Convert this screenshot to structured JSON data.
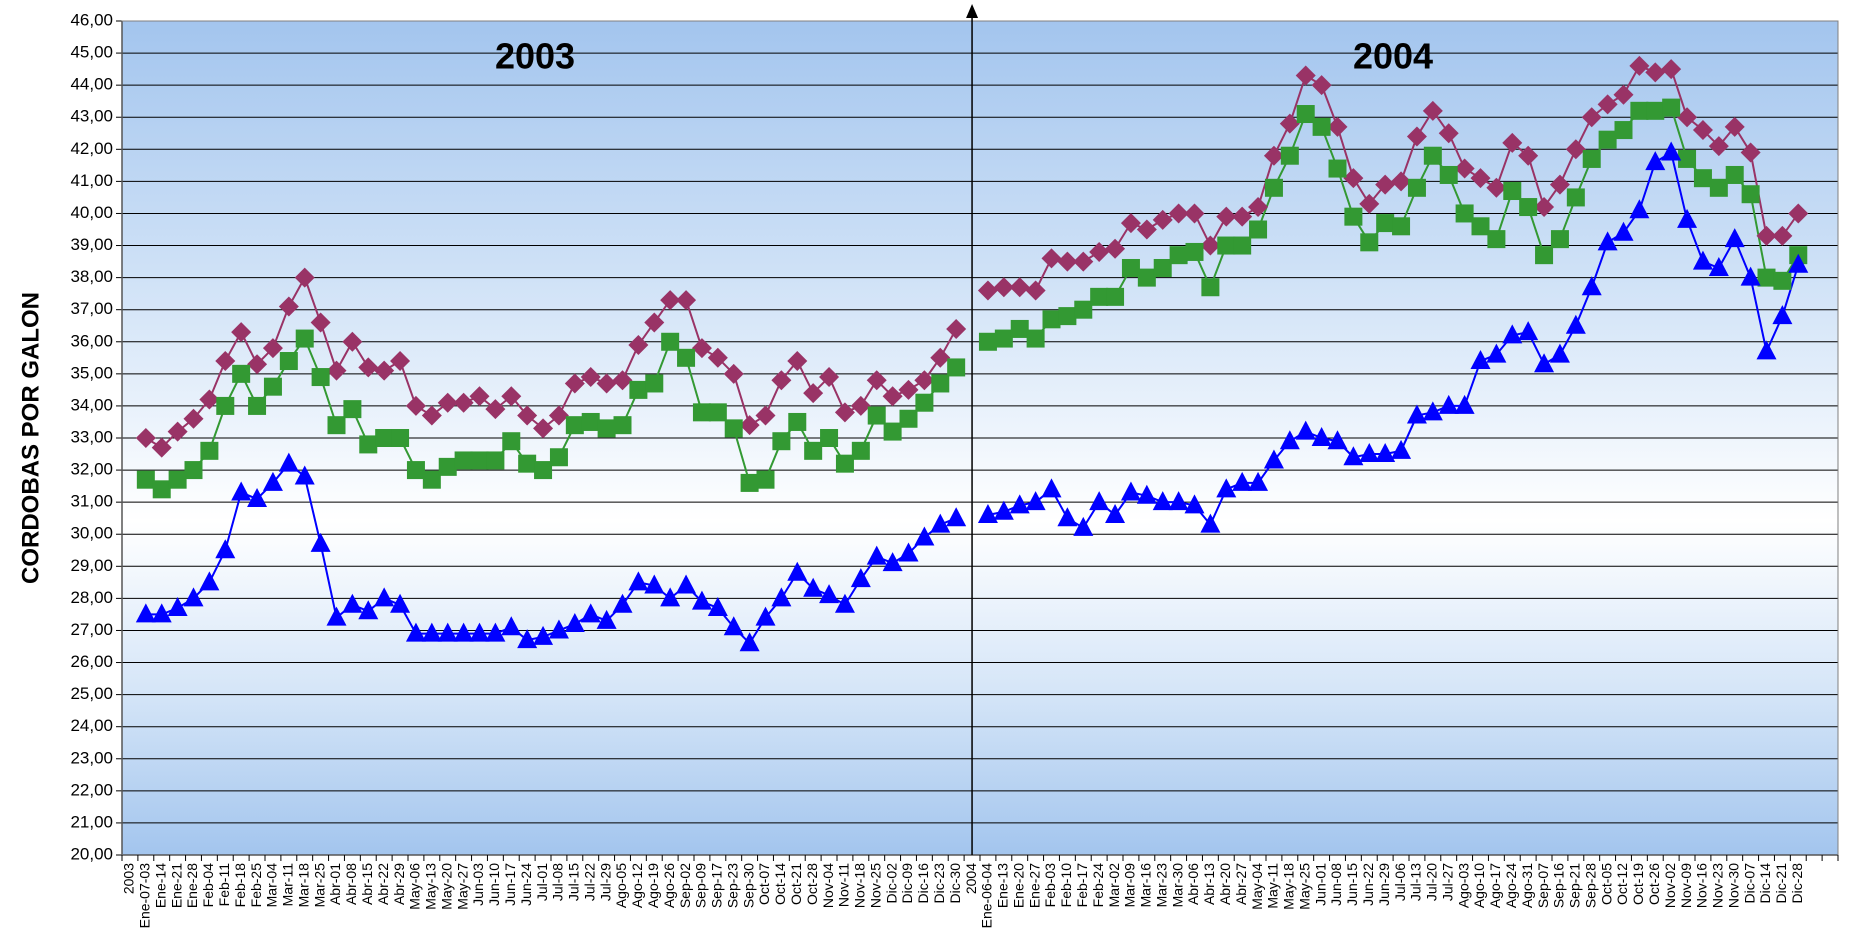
{
  "chart_data": {
    "type": "line",
    "y_label": "CORDOBAS POR GALON",
    "annotations": [
      "2003",
      "2004"
    ],
    "categories": [
      "2003",
      "Ene-07-03",
      "Ene-14",
      "Ene-21",
      "Ene-28",
      "Feb-04",
      "Feb-11",
      "Feb-18",
      "Feb-25",
      "Mar-04",
      "Mar-11",
      "Mar-18",
      "Mar-25",
      "Abr-01",
      "Abr-08",
      "Abr-15",
      "Abr-22",
      "Abr-29",
      "May-06",
      "May-13",
      "May-20",
      "May-27",
      "Jun-03",
      "Jun-10",
      "Jun-17",
      "Jun-24",
      "Jul-01",
      "Jul-08",
      "Jul-15",
      "Jul-22",
      "Jul-29",
      "Ago-05",
      "Ago-12",
      "Ago-19",
      "Ago-26",
      "Sep-02",
      "Sep-09",
      "Sep-17",
      "Sep-23",
      "Sep-30",
      "Oct-07",
      "Oct-14",
      "Oct-21",
      "Oct-28",
      "Nov-04",
      "Nov-11",
      "Nov-18",
      "Nov-25",
      "Dic-02",
      "Dic-09",
      "Dic-16",
      "Dic-23",
      "Dic-30",
      "2004",
      "Ene-06-04",
      "Ene-13",
      "Ene-20",
      "Ene-27",
      "Feb-03",
      "Feb-10",
      "Feb-17",
      "Feb-24",
      "Mar-02",
      "Mar-09",
      "Mar-16",
      "Mar-23",
      "Mar-30",
      "Abr-06",
      "Abr-13",
      "Abr-20",
      "Abr-27",
      "May-04",
      "May-11",
      "May-18",
      "May-25",
      "Jun-01",
      "Jun-08",
      "Jun-15",
      "Jun-22",
      "Jun-29",
      "Jul-06",
      "Jul-13",
      "Jul-20",
      "Jul-27",
      "Ago-03",
      "Ago-10",
      "Ago-17",
      "Ago-24",
      "Ago-31",
      "Sep-07",
      "Sep-16",
      "Sep-21",
      "Sep-28",
      "Oct-05",
      "Oct-12",
      "Oct-19",
      "Oct-26",
      "Nov-02",
      "Nov-09",
      "Nov-16",
      "Nov-23",
      "Nov-30",
      "Dic-07",
      "Dic-14",
      "Dic-21",
      "Dic-28",
      null,
      null
    ],
    "series": [
      {
        "color": "#993366",
        "marker": "diamond",
        "values": [
          null,
          33.0,
          32.7,
          33.2,
          33.6,
          34.2,
          35.4,
          36.3,
          35.3,
          35.8,
          37.1,
          38.0,
          36.6,
          35.1,
          36.0,
          35.2,
          35.1,
          35.4,
          34.0,
          33.7,
          34.1,
          34.1,
          34.3,
          33.9,
          34.3,
          33.7,
          33.3,
          33.7,
          34.7,
          34.9,
          34.7,
          34.8,
          35.9,
          36.6,
          37.3,
          37.3,
          35.8,
          35.5,
          35.0,
          33.4,
          33.7,
          34.8,
          35.4,
          34.4,
          34.9,
          33.8,
          34.0,
          34.8,
          34.3,
          34.5,
          34.8,
          35.5,
          36.4,
          null,
          37.6,
          37.7,
          37.7,
          37.6,
          38.6,
          38.5,
          38.5,
          38.8,
          38.9,
          39.7,
          39.5,
          39.8,
          40.0,
          40.0,
          39.0,
          39.9,
          39.9,
          40.2,
          41.8,
          42.8,
          44.3,
          44.0,
          42.7,
          41.1,
          40.3,
          40.9,
          41.0,
          42.4,
          43.2,
          42.5,
          41.4,
          41.1,
          40.8,
          42.2,
          41.8,
          40.2,
          40.9,
          42.0,
          43.0,
          43.4,
          43.7,
          44.6,
          44.4,
          44.5,
          43.0,
          42.6,
          42.1,
          42.7,
          41.9,
          39.3,
          39.3,
          40.0,
          null,
          null
        ]
      },
      {
        "color": "#339933",
        "marker": "square",
        "values": [
          null,
          31.7,
          31.4,
          31.7,
          32.0,
          32.6,
          34.0,
          35.0,
          34.0,
          34.6,
          35.4,
          36.1,
          34.9,
          33.4,
          33.9,
          32.8,
          33.0,
          33.0,
          32.0,
          31.7,
          32.1,
          32.3,
          32.3,
          32.3,
          32.9,
          32.2,
          32.0,
          32.4,
          33.4,
          33.5,
          33.3,
          33.4,
          34.5,
          34.7,
          36.0,
          35.5,
          33.8,
          33.8,
          33.3,
          31.6,
          31.7,
          32.9,
          33.5,
          32.6,
          33.0,
          32.2,
          32.6,
          33.7,
          33.2,
          33.6,
          34.1,
          34.7,
          35.2,
          null,
          36.0,
          36.1,
          36.4,
          36.1,
          36.7,
          36.8,
          37.0,
          37.4,
          37.4,
          38.3,
          38.0,
          38.3,
          38.7,
          38.8,
          37.7,
          39.0,
          39.0,
          39.5,
          40.8,
          41.8,
          43.1,
          42.7,
          41.4,
          39.9,
          39.1,
          39.7,
          39.6,
          40.8,
          41.8,
          41.2,
          40.0,
          39.6,
          39.2,
          40.7,
          40.2,
          38.7,
          39.2,
          40.5,
          41.7,
          42.3,
          42.6,
          43.2,
          43.2,
          43.3,
          41.7,
          41.1,
          40.8,
          41.2,
          40.6,
          38.0,
          37.9,
          38.7,
          null,
          null
        ]
      },
      {
        "color": "#0000ff",
        "marker": "triangle",
        "values": [
          null,
          27.5,
          27.5,
          27.7,
          28.0,
          28.5,
          29.5,
          31.3,
          31.1,
          31.6,
          32.2,
          31.8,
          29.7,
          27.4,
          27.8,
          27.6,
          28.0,
          27.8,
          26.9,
          26.9,
          26.9,
          26.9,
          26.9,
          26.9,
          27.1,
          26.7,
          26.8,
          27.0,
          27.2,
          27.5,
          27.3,
          27.8,
          28.5,
          28.4,
          28.0,
          28.4,
          27.9,
          27.7,
          27.1,
          26.6,
          27.4,
          28.0,
          28.8,
          28.3,
          28.1,
          27.8,
          28.6,
          29.3,
          29.1,
          29.4,
          29.9,
          30.3,
          30.5,
          null,
          30.6,
          30.7,
          30.9,
          31.0,
          31.4,
          30.5,
          30.2,
          31.0,
          30.6,
          31.3,
          31.2,
          31.0,
          31.0,
          30.9,
          30.3,
          31.4,
          31.6,
          31.6,
          32.3,
          32.9,
          33.2,
          33.0,
          32.9,
          32.4,
          32.5,
          32.5,
          32.6,
          33.7,
          33.8,
          34.0,
          34.0,
          35.4,
          35.6,
          36.2,
          36.3,
          35.3,
          35.6,
          36.5,
          37.7,
          39.1,
          39.4,
          40.1,
          41.6,
          41.9,
          39.8,
          38.5,
          38.3,
          39.2,
          38.0,
          35.7,
          36.8,
          38.4,
          null,
          null
        ]
      }
    ],
    "ylim": [
      20,
      46
    ],
    "yticks": [
      {
        "value": 20,
        "label": "20,00"
      },
      {
        "value": 21,
        "label": "21,00"
      },
      {
        "value": 22,
        "label": "22,00"
      },
      {
        "value": 23,
        "label": "23,00"
      },
      {
        "value": 24,
        "label": "24,00"
      },
      {
        "value": 25,
        "label": "25,00"
      },
      {
        "value": 26,
        "label": "26,00"
      },
      {
        "value": 27,
        "label": "27,00"
      },
      {
        "value": 28,
        "label": "28,00"
      },
      {
        "value": 29,
        "label": "29,00"
      },
      {
        "value": 30,
        "label": "30,00"
      },
      {
        "value": 31,
        "label": "31,00"
      },
      {
        "value": 32,
        "label": "32,00"
      },
      {
        "value": 33,
        "label": "33,00"
      },
      {
        "value": 34,
        "label": "34,00"
      },
      {
        "value": 35,
        "label": "35,00"
      },
      {
        "value": 36,
        "label": "36,00"
      },
      {
        "value": 37,
        "label": "37,00"
      },
      {
        "value": 38,
        "label": "38,00"
      },
      {
        "value": 39,
        "label": "39,00"
      },
      {
        "value": 40,
        "label": "40,00"
      },
      {
        "value": 41,
        "label": "41,00"
      },
      {
        "value": 42,
        "label": "42,00"
      },
      {
        "value": 43,
        "label": "43,00"
      },
      {
        "value": 44,
        "label": "44,00"
      },
      {
        "value": 45,
        "label": "45,00"
      },
      {
        "value": 46,
        "label": "46,00"
      }
    ],
    "grid": true
  }
}
